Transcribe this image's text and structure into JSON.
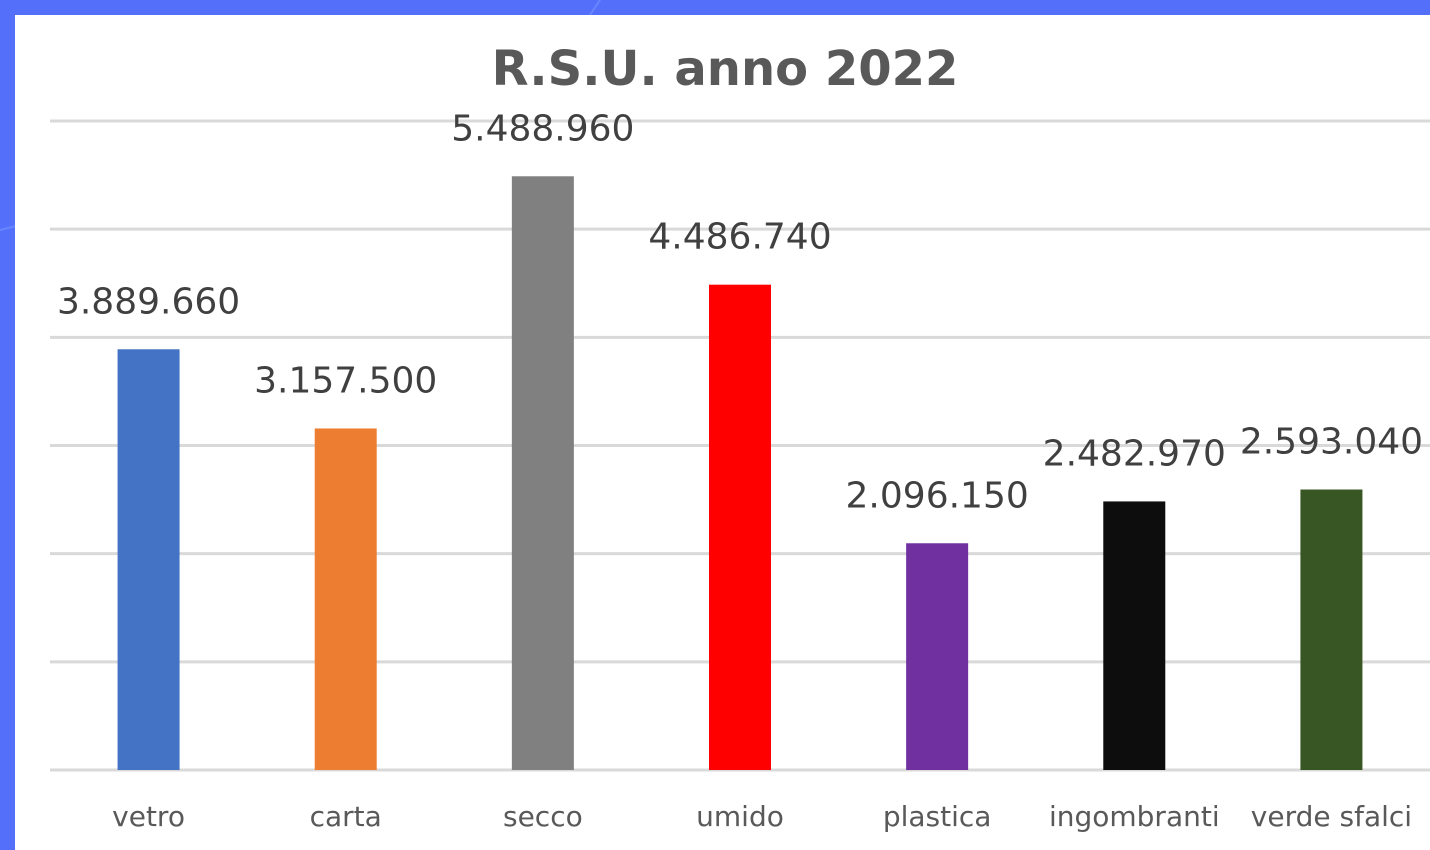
{
  "chart_data": {
    "type": "bar",
    "title": "R.S.U. anno 2022",
    "categories": [
      "vetro",
      "carta",
      "secco",
      "umido",
      "plastica",
      "ingombranti",
      "verde sfalci"
    ],
    "values": [
      3889660,
      3157500,
      5488960,
      4486740,
      2096150,
      2482970,
      2593040
    ],
    "value_labels": [
      "3.889.660",
      "3.157.500",
      "5.488.960",
      "4.486.740",
      "2.096.150",
      "2.482.970",
      "2.593.040"
    ],
    "colors": [
      "#4472c4",
      "#ed7d31",
      "#808080",
      "#ff0000",
      "#7030a0",
      "#0d0d0d",
      "#375623"
    ],
    "ylim": [
      0,
      6000000
    ],
    "yticks": [
      0,
      1000000,
      2000000,
      3000000,
      4000000,
      5000000,
      6000000
    ],
    "grid": true
  }
}
